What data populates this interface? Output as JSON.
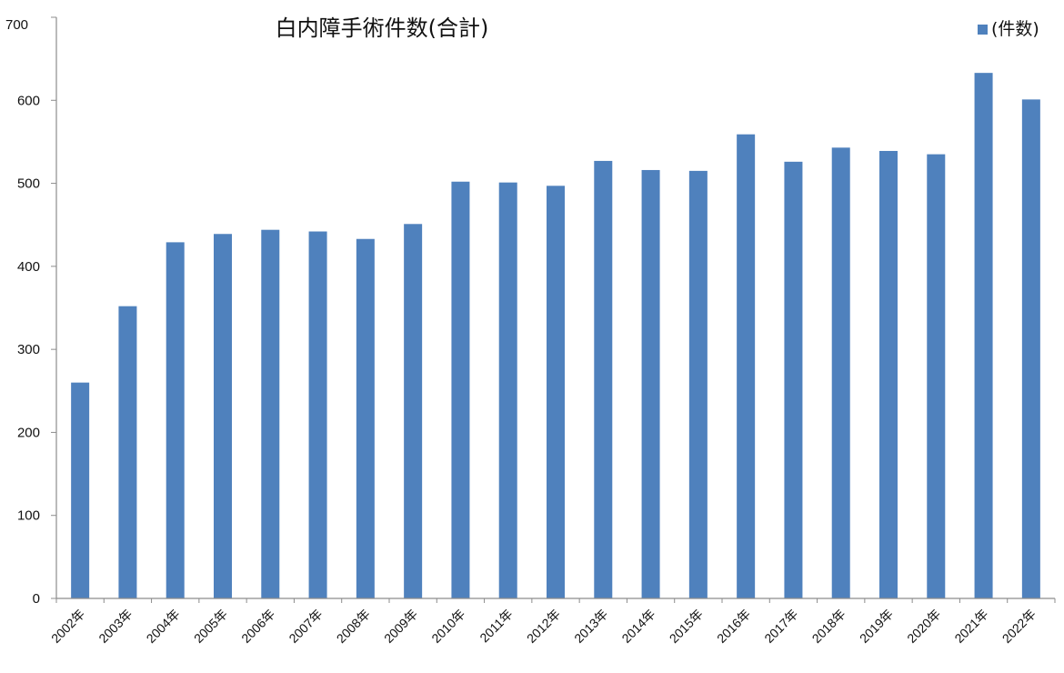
{
  "chart_data": {
    "type": "bar",
    "title": "白内障手術件数(合計)",
    "legend": [
      {
        "label": "(件数)",
        "color": "#4f81bd"
      }
    ],
    "legend_position": "top-right",
    "categories": [
      "2002年",
      "2003年",
      "2004年",
      "2005年",
      "2006年",
      "2007年",
      "2008年",
      "2009年",
      "2010年",
      "2011年",
      "2012年",
      "2013年",
      "2014年",
      "2015年",
      "2016年",
      "2017年",
      "2018年",
      "2019年",
      "2020年",
      "2021年",
      "2022年"
    ],
    "values": [
      260,
      352,
      429,
      439,
      444,
      442,
      433,
      451,
      502,
      501,
      497,
      527,
      516,
      515,
      559,
      526,
      543,
      539,
      535,
      633,
      601
    ],
    "ylim": [
      0,
      700
    ],
    "yticks": [
      0,
      100,
      200,
      300,
      400,
      500,
      600,
      700
    ],
    "xlabel": "",
    "ylabel": "",
    "grid": false,
    "bar_color": "#4f81bd",
    "x_tick_rotation": "diagonal"
  }
}
